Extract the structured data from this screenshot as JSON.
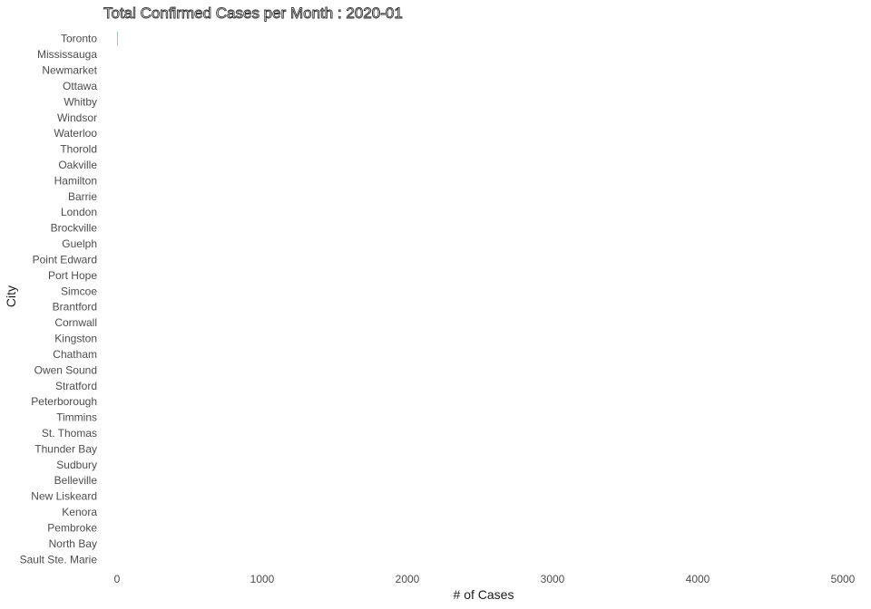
{
  "chart_data": {
    "type": "bar",
    "orientation": "horizontal",
    "title": "Total Confirmed Cases per Month : 2020-01",
    "xlabel": "# of Cases",
    "ylabel": "City",
    "xlim": [
      -100,
      5100
    ],
    "x_ticks": [
      0,
      1000,
      2000,
      3000,
      4000,
      5000
    ],
    "grid": false,
    "legend": "none",
    "bar_color": "#3a7bbf",
    "categories": [
      "Toronto",
      "Mississauga",
      "Newmarket",
      "Ottawa",
      "Whitby",
      "Windsor",
      "Waterloo",
      "Thorold",
      "Oakville",
      "Hamilton",
      "Barrie",
      "London",
      "Brockville",
      "Guelph",
      "Point Edward",
      "Port Hope",
      "Simcoe",
      "Brantford",
      "Cornwall",
      "Kingston",
      "Chatham",
      "Owen Sound",
      "Stratford",
      "Peterborough",
      "Timmins",
      "St. Thomas",
      "Thunder Bay",
      "Sudbury",
      "Belleville",
      "New Liskeard",
      "Kenora",
      "Pembroke",
      "North Bay",
      "Sault Ste. Marie"
    ],
    "values": [
      3,
      0,
      0,
      0,
      0,
      0,
      0,
      0,
      0,
      0,
      0,
      0,
      0,
      0,
      0,
      0,
      0,
      0,
      0,
      0,
      0,
      0,
      0,
      0,
      0,
      0,
      0,
      0,
      0,
      0,
      0,
      0,
      0,
      0
    ]
  }
}
